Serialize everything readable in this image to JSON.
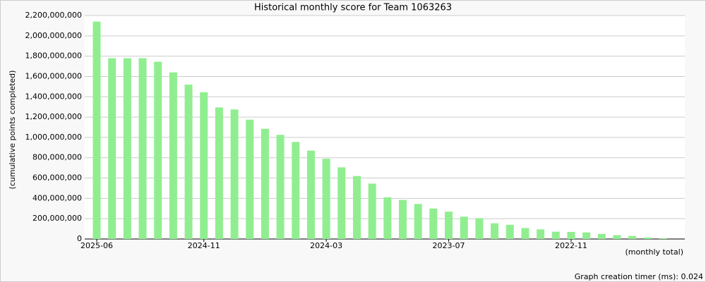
{
  "chart_data": {
    "type": "bar",
    "title": "Historical monthly score for Team 1063263",
    "y_label": "(cumulative points completed)",
    "x_label": "(monthly total)",
    "footer": "Graph creation timer (ms): 0.024",
    "categories": [
      "2025-06",
      null,
      null,
      null,
      null,
      null,
      null,
      "2024-11",
      null,
      null,
      null,
      null,
      null,
      null,
      null,
      "2024-03",
      null,
      null,
      null,
      null,
      null,
      null,
      null,
      "2023-07",
      null,
      null,
      null,
      null,
      null,
      null,
      null,
      "2022-11",
      null,
      null,
      null,
      null,
      null,
      null
    ],
    "values": [
      2140000000,
      1780000000,
      1780000000,
      1780000000,
      1745000000,
      1640000000,
      1520000000,
      1445000000,
      1295000000,
      1275000000,
      1175000000,
      1085000000,
      1025000000,
      955000000,
      870000000,
      790000000,
      705000000,
      620000000,
      545000000,
      410000000,
      385000000,
      345000000,
      300000000,
      270000000,
      220000000,
      205000000,
      155000000,
      140000000,
      108000000,
      95000000,
      72000000,
      70000000,
      65000000,
      50000000,
      38000000,
      30000000,
      15000000,
      8000000
    ],
    "color": "#90ee90",
    "ylim": [
      0,
      2200000000
    ],
    "yticks": [
      0,
      {
        "value": 200000000,
        "label": "200,000,000"
      },
      {
        "value": 400000000,
        "label": "400,000,000"
      },
      {
        "value": 600000000,
        "label": "600,000,000"
      },
      {
        "value": 800000000,
        "label": "800,000,000"
      },
      {
        "value": 1000000000,
        "label": "1,000,000,000"
      },
      {
        "value": 1200000000,
        "label": "1,200,000,000"
      },
      {
        "value": 1400000000,
        "label": "1,400,000,000"
      },
      {
        "value": 1600000000,
        "label": "1,600,000,000"
      },
      {
        "value": 1800000000,
        "label": "1,800,000,000"
      },
      {
        "value": 2000000000,
        "label": "2,000,000,000"
      },
      {
        "value": 2200000000,
        "label": "2,200,000,000"
      }
    ],
    "grid": true
  }
}
